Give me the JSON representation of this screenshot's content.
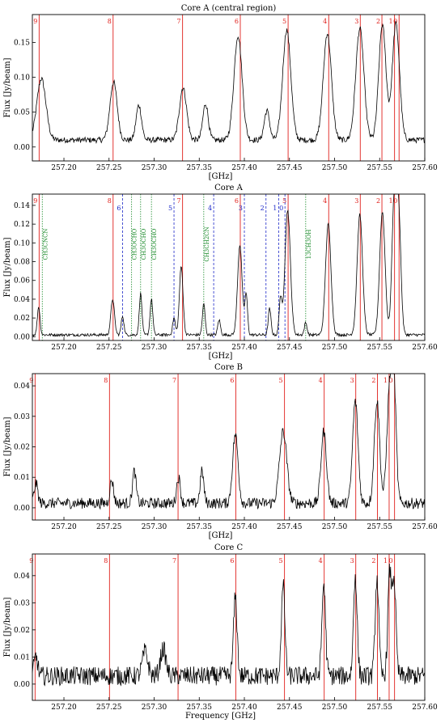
{
  "chart_data": [
    {
      "type": "line",
      "title": "Core A (central region)",
      "xlabel": "[GHz]",
      "ylabel": "Flux [Jy/beam]",
      "xlim": [
        257.165,
        257.6
      ],
      "ylim": [
        -0.02,
        0.19
      ],
      "xticks": [
        "257.20",
        "257.25",
        "257.30",
        "257.35",
        "257.40",
        "257.45",
        "257.50",
        "257.55",
        "257.60"
      ],
      "yticks": [
        "0.00",
        "0.05",
        "0.10",
        "0.15"
      ],
      "xtick_vals": [
        257.2,
        257.25,
        257.3,
        257.35,
        257.4,
        257.45,
        257.5,
        257.55,
        257.6
      ],
      "ytick_vals": [
        0,
        0.05,
        0.1,
        0.15
      ],
      "baseline": 0.01,
      "noise": 0.004,
      "peaks": [
        {
          "x": 257.175,
          "y": 0.098,
          "w": 0.005
        },
        {
          "x": 257.255,
          "y": 0.093,
          "w": 0.004
        },
        {
          "x": 257.283,
          "y": 0.06,
          "w": 0.003
        },
        {
          "x": 257.332,
          "y": 0.085,
          "w": 0.004
        },
        {
          "x": 257.357,
          "y": 0.062,
          "w": 0.003
        },
        {
          "x": 257.393,
          "y": 0.16,
          "w": 0.0045
        },
        {
          "x": 257.425,
          "y": 0.052,
          "w": 0.003
        },
        {
          "x": 257.447,
          "y": 0.168,
          "w": 0.0045
        },
        {
          "x": 257.492,
          "y": 0.163,
          "w": 0.0045
        },
        {
          "x": 257.528,
          "y": 0.17,
          "w": 0.0045
        },
        {
          "x": 257.553,
          "y": 0.175,
          "w": 0.004
        },
        {
          "x": 257.568,
          "y": 0.177,
          "w": 0.004
        }
      ],
      "lines_red": [
        {
          "x": 257.1725,
          "label": "9"
        },
        {
          "x": 257.2545,
          "label": "8"
        },
        {
          "x": 257.3315,
          "label": "7"
        },
        {
          "x": 257.3955,
          "label": "6"
        },
        {
          "x": 257.4485,
          "label": "5"
        },
        {
          "x": 257.4935,
          "label": "4"
        },
        {
          "x": 257.5285,
          "label": "3"
        },
        {
          "x": 257.5525,
          "label": "2"
        },
        {
          "x": 257.5665,
          "label": "1"
        },
        {
          "x": 257.5715,
          "label": "0"
        }
      ]
    },
    {
      "type": "line",
      "title": "Core A",
      "xlabel": "[GHz]",
      "ylabel": "Flux [Jy/beam]",
      "xlim": [
        257.165,
        257.6
      ],
      "ylim": [
        -0.004,
        0.152
      ],
      "xticks": [
        "257.20",
        "257.25",
        "257.30",
        "257.35",
        "257.40",
        "257.45",
        "257.50",
        "257.55",
        "257.60"
      ],
      "yticks": [
        "0.00",
        "0.02",
        "0.04",
        "0.06",
        "0.08",
        "0.10",
        "0.12",
        "0.14"
      ],
      "xtick_vals": [
        257.2,
        257.25,
        257.3,
        257.35,
        257.4,
        257.45,
        257.5,
        257.55,
        257.6
      ],
      "ytick_vals": [
        0,
        0.02,
        0.04,
        0.06,
        0.08,
        0.1,
        0.12,
        0.14
      ],
      "baseline": 0.002,
      "noise": 0.0015,
      "peaks": [
        {
          "x": 257.172,
          "y": 0.032,
          "w": 0.0015
        },
        {
          "x": 257.254,
          "y": 0.04,
          "w": 0.002
        },
        {
          "x": 257.265,
          "y": 0.022,
          "w": 0.0015
        },
        {
          "x": 257.285,
          "y": 0.046,
          "w": 0.0015
        },
        {
          "x": 257.297,
          "y": 0.04,
          "w": 0.0015
        },
        {
          "x": 257.322,
          "y": 0.02,
          "w": 0.0015
        },
        {
          "x": 257.33,
          "y": 0.075,
          "w": 0.002
        },
        {
          "x": 257.355,
          "y": 0.035,
          "w": 0.0015
        },
        {
          "x": 257.372,
          "y": 0.018,
          "w": 0.0015
        },
        {
          "x": 257.395,
          "y": 0.098,
          "w": 0.0025
        },
        {
          "x": 257.402,
          "y": 0.045,
          "w": 0.0015
        },
        {
          "x": 257.428,
          "y": 0.03,
          "w": 0.0015
        },
        {
          "x": 257.44,
          "y": 0.04,
          "w": 0.0015
        },
        {
          "x": 257.448,
          "y": 0.135,
          "w": 0.003
        },
        {
          "x": 257.468,
          "y": 0.015,
          "w": 0.0015
        },
        {
          "x": 257.493,
          "y": 0.12,
          "w": 0.003
        },
        {
          "x": 257.528,
          "y": 0.13,
          "w": 0.003
        },
        {
          "x": 257.553,
          "y": 0.133,
          "w": 0.003
        },
        {
          "x": 257.566,
          "y": 0.14,
          "w": 0.0025
        },
        {
          "x": 257.571,
          "y": 0.131,
          "w": 0.0025
        }
      ],
      "lines_red": [
        {
          "x": 257.1725,
          "label": "9"
        },
        {
          "x": 257.2545,
          "label": "8"
        },
        {
          "x": 257.3315,
          "label": "7"
        },
        {
          "x": 257.3955,
          "label": "6"
        },
        {
          "x": 257.4485,
          "label": "5"
        },
        {
          "x": 257.4935,
          "label": "4"
        },
        {
          "x": 257.5285,
          "label": "3"
        },
        {
          "x": 257.5525,
          "label": "2"
        },
        {
          "x": 257.5665,
          "label": "1"
        },
        {
          "x": 257.5715,
          "label": "0"
        }
      ],
      "lines_blue": [
        {
          "x": 257.265,
          "label": "6"
        },
        {
          "x": 257.322,
          "label": "5"
        },
        {
          "x": 257.366,
          "label": "4"
        },
        {
          "x": 257.4,
          "label": "3"
        },
        {
          "x": 257.424,
          "label": "2"
        },
        {
          "x": 257.438,
          "label": "1"
        },
        {
          "x": 257.445,
          "label": "0"
        }
      ],
      "lines_green": [
        {
          "x": 257.176,
          "label": "CH3CNCN"
        },
        {
          "x": 257.275,
          "label": "CH3OCHO"
        },
        {
          "x": 257.285,
          "label": "CH3OCHO"
        },
        {
          "x": 257.297,
          "label": "CH3OCHO"
        },
        {
          "x": 257.355,
          "label": "CH3CH2CN"
        },
        {
          "x": 257.468,
          "label": "13CH3OH"
        }
      ]
    },
    {
      "type": "line",
      "title": "Core B",
      "xlabel": "[GHz]",
      "ylabel": "Flux [Jy/beam]",
      "xlim": [
        257.165,
        257.6
      ],
      "ylim": [
        -0.004,
        0.044
      ],
      "xticks": [
        "257.20",
        "257.25",
        "257.30",
        "257.35",
        "257.40",
        "257.45",
        "257.50",
        "257.55",
        "257.60"
      ],
      "yticks": [
        "0.00",
        "0.01",
        "0.02",
        "0.03",
        "0.04"
      ],
      "xtick_vals": [
        257.2,
        257.25,
        257.3,
        257.35,
        257.4,
        257.45,
        257.5,
        257.55,
        257.6
      ],
      "ytick_vals": [
        0,
        0.01,
        0.02,
        0.03,
        0.04
      ],
      "baseline": 0.0015,
      "noise": 0.0018,
      "peaks": [
        {
          "x": 257.169,
          "y": 0.008,
          "w": 0.002
        },
        {
          "x": 257.253,
          "y": 0.009,
          "w": 0.002
        },
        {
          "x": 257.278,
          "y": 0.012,
          "w": 0.002
        },
        {
          "x": 257.327,
          "y": 0.01,
          "w": 0.002
        },
        {
          "x": 257.353,
          "y": 0.012,
          "w": 0.002
        },
        {
          "x": 257.39,
          "y": 0.024,
          "w": 0.003
        },
        {
          "x": 257.443,
          "y": 0.025,
          "w": 0.004
        },
        {
          "x": 257.488,
          "y": 0.025,
          "w": 0.003
        },
        {
          "x": 257.523,
          "y": 0.035,
          "w": 0.003
        },
        {
          "x": 257.547,
          "y": 0.035,
          "w": 0.003
        },
        {
          "x": 257.561,
          "y": 0.038,
          "w": 0.003
        },
        {
          "x": 257.566,
          "y": 0.036,
          "w": 0.0025
        }
      ],
      "lines_red": [
        {
          "x": 257.168,
          "label": "9"
        },
        {
          "x": 257.2505,
          "label": "8"
        },
        {
          "x": 257.3265,
          "label": "7"
        },
        {
          "x": 257.3905,
          "label": "6"
        },
        {
          "x": 257.4445,
          "label": "5"
        },
        {
          "x": 257.4885,
          "label": "4"
        },
        {
          "x": 257.5235,
          "label": "3"
        },
        {
          "x": 257.5475,
          "label": "2"
        },
        {
          "x": 257.5605,
          "label": "1"
        },
        {
          "x": 257.5665,
          "label": "0"
        }
      ]
    },
    {
      "type": "line",
      "title": "Core C",
      "xlabel": "Frequency [GHz]",
      "ylabel": "Flux [Jy/beam]",
      "xlim": [
        257.165,
        257.6
      ],
      "ylim": [
        -0.006,
        0.048
      ],
      "xticks": [
        "257.20",
        "257.25",
        "257.30",
        "257.35",
        "257.40",
        "257.45",
        "257.50",
        "257.55",
        "257.60"
      ],
      "yticks": [
        "0.00",
        "0.01",
        "0.02",
        "0.03",
        "0.04"
      ],
      "xtick_vals": [
        257.2,
        257.25,
        257.3,
        257.35,
        257.4,
        257.45,
        257.5,
        257.55,
        257.6
      ],
      "ytick_vals": [
        0,
        0.01,
        0.02,
        0.03,
        0.04
      ],
      "baseline": 0.003,
      "noise": 0.0035,
      "peaks": [
        {
          "x": 257.169,
          "y": 0.01,
          "w": 0.002
        },
        {
          "x": 257.29,
          "y": 0.012,
          "w": 0.003
        },
        {
          "x": 257.31,
          "y": 0.013,
          "w": 0.003
        },
        {
          "x": 257.39,
          "y": 0.032,
          "w": 0.002
        },
        {
          "x": 257.443,
          "y": 0.036,
          "w": 0.002
        },
        {
          "x": 257.488,
          "y": 0.037,
          "w": 0.002
        },
        {
          "x": 257.523,
          "y": 0.04,
          "w": 0.002
        },
        {
          "x": 257.547,
          "y": 0.039,
          "w": 0.002
        },
        {
          "x": 257.561,
          "y": 0.04,
          "w": 0.002
        },
        {
          "x": 257.566,
          "y": 0.038,
          "w": 0.002
        }
      ],
      "lines_red": [
        {
          "x": 257.168,
          "label": "9"
        },
        {
          "x": 257.2505,
          "label": "8"
        },
        {
          "x": 257.3265,
          "label": "7"
        },
        {
          "x": 257.3905,
          "label": "6"
        },
        {
          "x": 257.4445,
          "label": "5"
        },
        {
          "x": 257.4885,
          "label": "4"
        },
        {
          "x": 257.5235,
          "label": "3"
        },
        {
          "x": 257.5475,
          "label": "2"
        },
        {
          "x": 257.5605,
          "label": "1"
        },
        {
          "x": 257.5665,
          "label": "0"
        }
      ]
    }
  ],
  "colors": {
    "red_line": "#e0201c",
    "blue_line": "#1c28c8",
    "green_line": "#1a8a2a",
    "spectrum": "#000000"
  }
}
